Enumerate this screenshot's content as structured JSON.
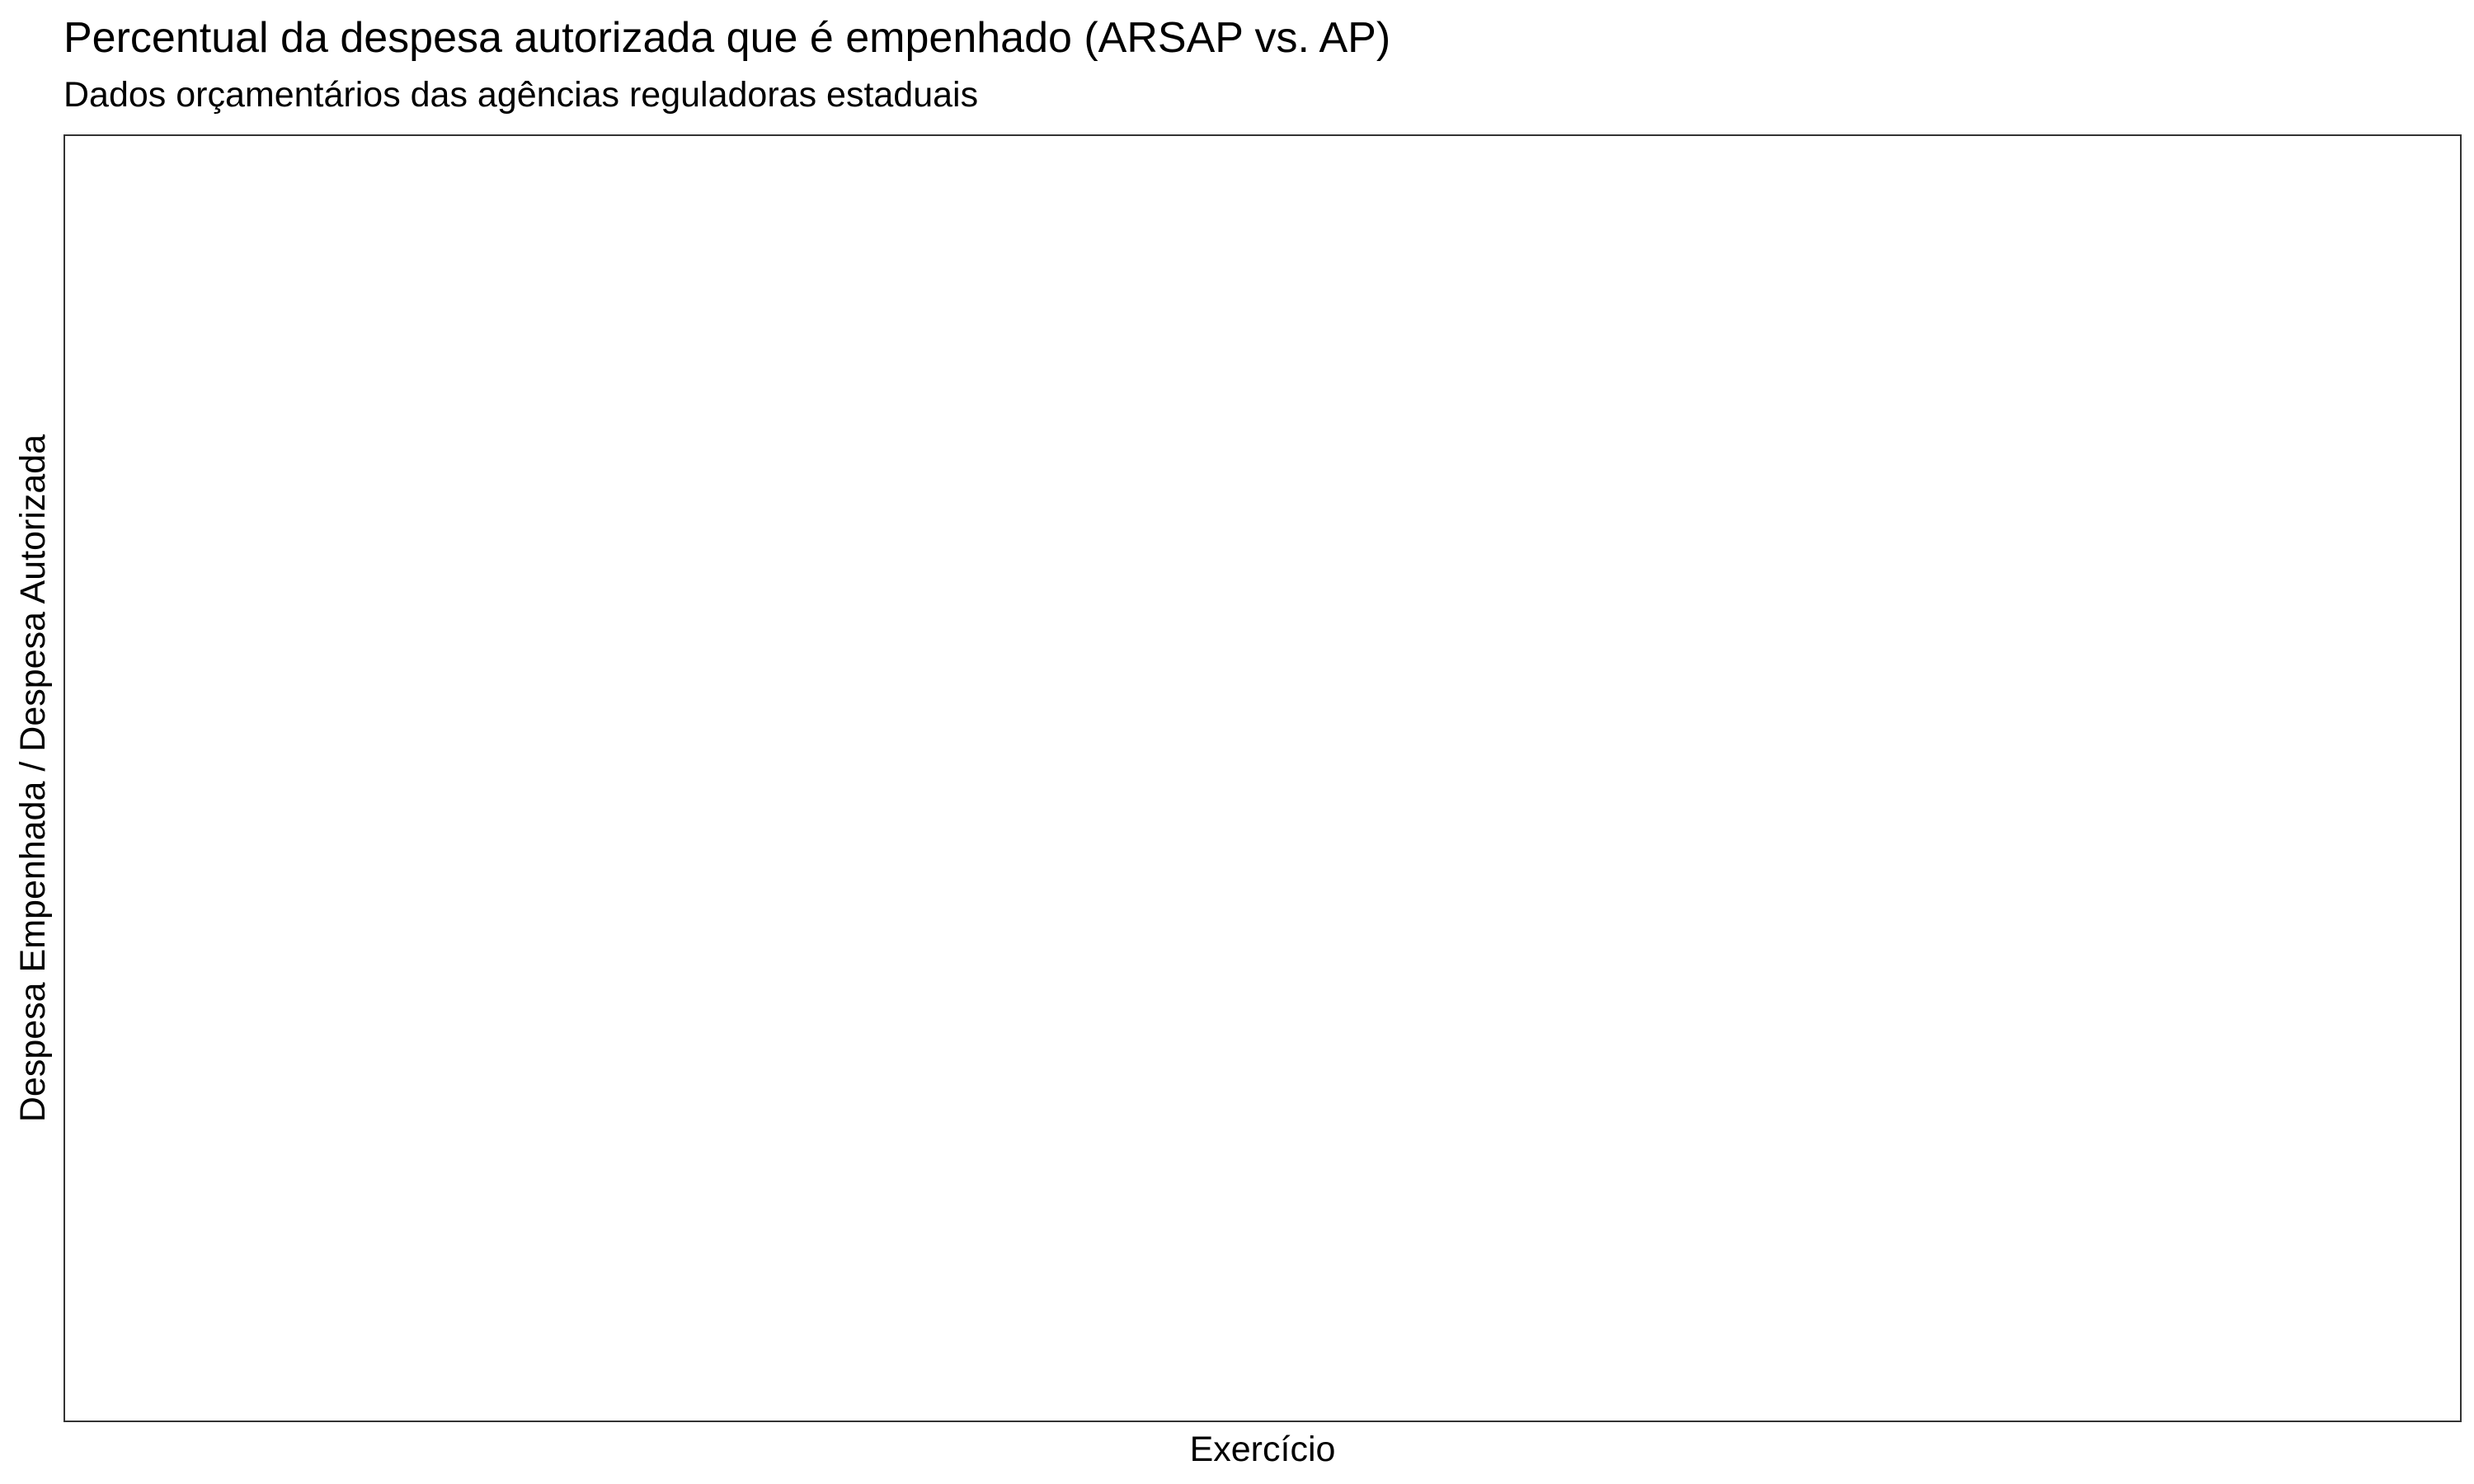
{
  "chart_data": {
    "type": "line",
    "title": "Percentual da despesa autorizada que é empenhado (ARSAP vs. AP)",
    "subtitle": "Dados orçamentários das agências reguladoras estaduais",
    "xlabel": "Exercício",
    "ylabel": "Despesa Empenhada / Despesa Autorizada",
    "x": [],
    "series": [],
    "grid": false,
    "legend": "none"
  }
}
